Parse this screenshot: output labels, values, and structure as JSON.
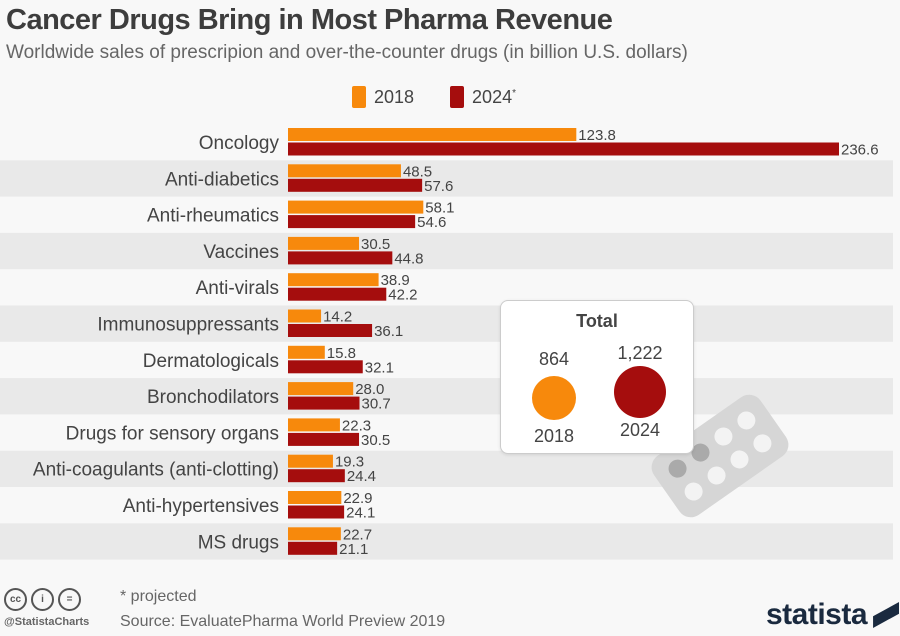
{
  "header": {
    "title": "Cancer Drugs Bring in Most Pharma Revenue",
    "subtitle": "Worldwide sales of prescripion and over-the-counter drugs (in billion U.S. dollars)"
  },
  "chart_data": {
    "type": "bar",
    "orientation": "horizontal",
    "title": "Cancer Drugs Bring in Most Pharma Revenue",
    "categories": [
      "Oncology",
      "Anti-diabetics",
      "Anti-rheumatics",
      "Vaccines",
      "Anti-virals",
      "Immunosuppressants",
      "Dermatologicals",
      "Bronchodilators",
      "Drugs for sensory organs",
      "Anti-coagulants (anti-clotting)",
      "Anti-hypertensives",
      "MS drugs"
    ],
    "series": [
      {
        "name": "2018",
        "color": "#f7890c",
        "values_text": [
          "123.8",
          "48.5",
          "58.1",
          "30.5",
          "38.9",
          "14.2",
          "15.8",
          "28.0",
          "22.3",
          "19.3",
          "22.9",
          "22.7"
        ],
        "values": [
          123.8,
          48.5,
          58.1,
          30.5,
          38.9,
          14.2,
          15.8,
          28.0,
          22.3,
          19.3,
          22.9,
          22.7
        ]
      },
      {
        "name": "2024",
        "legend_label": "2024*",
        "color": "#a50d0d",
        "values_text": [
          "236.6",
          "57.6",
          "54.6",
          "44.8",
          "42.2",
          "36.1",
          "32.1",
          "30.7",
          "30.5",
          "24.4",
          "24.1",
          "21.1"
        ],
        "values": [
          236.6,
          57.6,
          54.6,
          44.8,
          42.2,
          36.1,
          32.1,
          30.7,
          30.5,
          24.4,
          24.1,
          21.1
        ]
      }
    ],
    "xlim": [
      0,
      236.6
    ],
    "legend": "top-center"
  },
  "legend": {
    "a": "2018",
    "b": "2024",
    "b_sup": "*"
  },
  "total": {
    "title": "Total",
    "a_value": "864",
    "a_year": "2018",
    "b_value": "1,222",
    "b_year": "2024"
  },
  "footer": {
    "note": "* projected",
    "source": "Source: EvaluatePharma World Preview 2019",
    "handle": "@StatistaCharts",
    "logo": "statista",
    "cc": [
      "cc",
      "i",
      "="
    ]
  }
}
